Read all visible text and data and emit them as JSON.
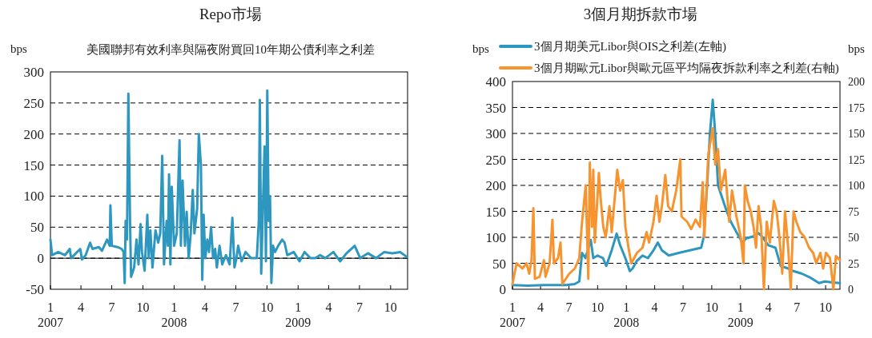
{
  "chart_data": [
    {
      "type": "line",
      "title": "Repo市場",
      "subtitle": "美國聯邦有效利率與隔夜附買回10年期公債利率之利差",
      "ylabel": "bps",
      "xlim": [
        "2007-01-01",
        "2009-11-20"
      ],
      "ylim": [
        -50,
        300
      ],
      "yticks": [
        -50,
        0,
        50,
        100,
        150,
        200,
        250,
        300
      ],
      "xticks": [
        {
          "value": "2007-01-01",
          "label": "1\n2007"
        },
        {
          "value": "2007-04-01",
          "label": "4"
        },
        {
          "value": "2007-07-01",
          "label": "7"
        },
        {
          "value": "2007-10-01",
          "label": "10"
        },
        {
          "value": "2008-01-01",
          "label": "1\n2008"
        },
        {
          "value": "2008-04-01",
          "label": "4"
        },
        {
          "value": "2008-07-01",
          "label": "7"
        },
        {
          "value": "2008-10-01",
          "label": "10"
        },
        {
          "value": "2009-01-01",
          "label": "1\n2009"
        },
        {
          "value": "2009-04-01",
          "label": "4"
        },
        {
          "value": "2009-07-01",
          "label": "7"
        },
        {
          "value": "2009-10-01",
          "label": "10"
        }
      ],
      "grid": "y",
      "legend": false,
      "ref_lines": [
        {
          "axis": "y",
          "value": 0,
          "color": "#000000",
          "line_style": "solid"
        }
      ],
      "series": [
        {
          "color": "#2e97c0",
          "x": [
            "2007-01-01",
            "2007-01-06",
            "2007-01-24",
            "2007-02-13",
            "2007-02-27",
            "2007-03-03",
            "2007-03-30",
            "2007-04-04",
            "2007-04-15",
            "2007-04-28",
            "2007-05-05",
            "2007-05-24",
            "2007-06-02",
            "2007-06-17",
            "2007-06-25",
            "2007-06-27",
            "2007-07-01",
            "2007-07-18",
            "2007-07-30",
            "2007-08-05",
            "2007-08-08",
            "2007-08-11",
            "2007-08-15",
            "2007-08-19",
            "2007-08-24",
            "2007-08-27",
            "2007-09-05",
            "2007-09-12",
            "2007-09-18",
            "2007-09-24",
            "2007-09-28",
            "2007-10-06",
            "2007-10-14",
            "2007-10-18",
            "2007-10-23",
            "2007-10-29",
            "2007-11-07",
            "2007-11-15",
            "2007-11-21",
            "2007-11-27",
            "2007-12-02",
            "2007-12-10",
            "2007-12-14",
            "2007-12-17",
            "2007-12-21",
            "2007-12-25",
            "2008-01-01",
            "2008-01-09",
            "2008-01-17",
            "2008-01-21",
            "2008-01-26",
            "2008-02-02",
            "2008-02-07",
            "2008-02-13",
            "2008-02-19",
            "2008-02-25",
            "2008-03-01",
            "2008-03-09",
            "2008-03-14",
            "2008-03-20",
            "2008-03-24",
            "2008-03-28",
            "2008-04-02",
            "2008-04-08",
            "2008-04-13",
            "2008-04-19",
            "2008-04-25",
            "2008-05-01",
            "2008-05-06",
            "2008-05-14",
            "2008-05-22",
            "2008-06-02",
            "2008-06-13",
            "2008-06-21",
            "2008-06-27",
            "2008-07-03",
            "2008-07-08",
            "2008-07-18",
            "2008-07-30",
            "2008-08-15",
            "2008-09-01",
            "2008-09-07",
            "2008-09-10",
            "2008-09-14",
            "2008-09-20",
            "2008-09-24",
            "2008-09-28",
            "2008-10-02",
            "2008-10-06",
            "2008-10-10",
            "2008-10-14",
            "2008-10-19",
            "2008-10-25",
            "2008-11-03",
            "2008-11-15",
            "2008-11-22",
            "2008-11-30",
            "2008-12-19",
            "2009-01-05",
            "2009-01-20",
            "2009-02-06",
            "2009-02-21",
            "2009-03-07",
            "2009-03-22",
            "2009-04-15",
            "2009-05-05",
            "2009-05-24",
            "2009-06-17",
            "2009-07-03",
            "2009-07-26",
            "2009-08-19",
            "2009-09-12",
            "2009-10-06",
            "2009-10-29",
            "2009-11-18"
          ],
          "values": [
            30,
            5,
            10,
            5,
            15,
            0,
            15,
            -2,
            5,
            25,
            15,
            18,
            12,
            30,
            20,
            85,
            20,
            18,
            15,
            10,
            -40,
            60,
            30,
            265,
            60,
            -30,
            -15,
            30,
            -10,
            55,
            10,
            -20,
            70,
            0,
            45,
            -15,
            45,
            25,
            40,
            165,
            -10,
            60,
            20,
            135,
            -10,
            115,
            20,
            40,
            190,
            20,
            125,
            20,
            75,
            0,
            40,
            110,
            40,
            80,
            200,
            150,
            -35,
            70,
            0,
            30,
            10,
            50,
            0,
            15,
            -15,
            20,
            -10,
            5,
            -10,
            65,
            -15,
            0,
            20,
            -5,
            10,
            0,
            0,
            60,
            255,
            -25,
            100,
            180,
            -5,
            270,
            60,
            100,
            -40,
            20,
            10,
            20,
            30,
            25,
            5,
            10,
            -5,
            10,
            0,
            0,
            5,
            0,
            10,
            -5,
            8,
            20,
            0,
            8,
            0,
            10,
            8,
            10,
            2
          ]
        }
      ]
    },
    {
      "type": "line",
      "title": "3個月期拆款市場",
      "ylabel": "bps",
      "y2label": "bps",
      "xlim": [
        "2007-01-01",
        "2009-11-16"
      ],
      "ylim": [
        0,
        400
      ],
      "yticks": [
        0,
        50,
        100,
        150,
        200,
        250,
        300,
        350,
        400
      ],
      "y2lim": [
        0,
        200
      ],
      "y2ticks": [
        0,
        25,
        50,
        75,
        100,
        125,
        150,
        175,
        200
      ],
      "xticks": [
        {
          "value": "2007-01-01",
          "label": "1\n2007"
        },
        {
          "value": "2007-04-01",
          "label": "4"
        },
        {
          "value": "2007-07-01",
          "label": "7"
        },
        {
          "value": "2007-10-01",
          "label": "10"
        },
        {
          "value": "2008-01-01",
          "label": "1\n2008"
        },
        {
          "value": "2008-04-01",
          "label": "4"
        },
        {
          "value": "2008-07-01",
          "label": "7"
        },
        {
          "value": "2008-10-01",
          "label": "10"
        },
        {
          "value": "2009-01-01",
          "label": "1\n2009"
        },
        {
          "value": "2009-04-01",
          "label": "4"
        },
        {
          "value": "2009-07-01",
          "label": "7"
        },
        {
          "value": "2009-10-01",
          "label": "10"
        }
      ],
      "grid": "y",
      "legend": "top",
      "series": [
        {
          "name": "3個月期美元Libor與OIS之利差(左軸)",
          "color": "#2e97c0",
          "x": [
            "2007-01-01",
            "2007-02-19",
            "2007-04-12",
            "2007-06-23",
            "2007-07-19",
            "2007-08-03",
            "2007-08-12",
            "2007-08-23",
            "2007-09-09",
            "2007-09-17",
            "2007-10-01",
            "2007-10-18",
            "2007-10-29",
            "2007-11-15",
            "2007-12-01",
            "2007-12-12",
            "2007-12-29",
            "2008-01-12",
            "2008-01-21",
            "2008-02-04",
            "2008-02-22",
            "2008-03-10",
            "2008-03-28",
            "2008-04-11",
            "2008-04-24",
            "2008-05-16",
            "2008-06-17",
            "2008-07-23",
            "2008-08-28",
            "2008-09-05",
            "2008-09-16",
            "2008-09-25",
            "2008-10-04",
            "2008-10-12",
            "2008-10-21",
            "2008-11-04",
            "2008-11-18",
            "2008-12-01",
            "2008-12-19",
            "2009-01-07",
            "2009-01-20",
            "2009-02-12",
            "2009-02-28",
            "2009-03-13",
            "2009-03-31",
            "2009-04-23",
            "2009-05-10",
            "2009-06-03",
            "2009-06-20",
            "2009-07-17",
            "2009-08-14",
            "2009-09-10",
            "2009-09-28",
            "2009-10-24",
            "2009-11-16"
          ],
          "values": [
            8,
            7,
            8,
            8,
            10,
            15,
            70,
            60,
            95,
            60,
            65,
            60,
            45,
            75,
            107,
            85,
            60,
            35,
            40,
            55,
            65,
            60,
            75,
            90,
            75,
            65,
            70,
            75,
            80,
            100,
            200,
            300,
            365,
            300,
            200,
            175,
            150,
            130,
            110,
            90,
            98,
            102,
            108,
            100,
            85,
            80,
            45,
            40,
            35,
            30,
            22,
            12,
            15,
            13,
            12
          ]
        },
        {
          "name": "3個月期歐元Libor與歐元區平均隔夜拆款利率之利差(右軸)",
          "color": "#f7942f",
          "axis": "y2",
          "x": [
            "2007-01-01",
            "2007-01-14",
            "2007-02-02",
            "2007-02-15",
            "2007-02-24",
            "2007-03-03",
            "2007-03-09",
            "2007-03-14",
            "2007-03-29",
            "2007-04-12",
            "2007-04-17",
            "2007-04-30",
            "2007-05-09",
            "2007-05-14",
            "2007-05-27",
            "2007-06-04",
            "2007-06-10",
            "2007-07-02",
            "2007-07-20",
            "2007-08-03",
            "2007-08-12",
            "2007-08-24",
            "2007-09-01",
            "2007-09-06",
            "2007-09-13",
            "2007-09-17",
            "2007-09-22",
            "2007-10-05",
            "2007-10-10",
            "2007-10-19",
            "2007-10-27",
            "2007-11-08",
            "2007-11-15",
            "2007-12-03",
            "2007-12-12",
            "2007-12-21",
            "2007-12-29",
            "2008-01-08",
            "2008-01-17",
            "2008-02-04",
            "2008-02-22",
            "2008-03-06",
            "2008-03-14",
            "2008-03-28",
            "2008-04-07",
            "2008-04-16",
            "2008-04-24",
            "2008-05-05",
            "2008-05-14",
            "2008-05-26",
            "2008-06-09",
            "2008-06-22",
            "2008-06-26",
            "2008-07-14",
            "2008-07-27",
            "2008-08-10",
            "2008-08-24",
            "2008-09-02",
            "2008-09-07",
            "2008-09-20",
            "2008-10-04",
            "2008-10-12",
            "2008-10-21",
            "2008-10-30",
            "2008-11-13",
            "2008-11-26",
            "2008-12-05",
            "2008-12-19",
            "2009-01-02",
            "2009-01-11",
            "2009-01-15",
            "2009-01-24",
            "2009-02-03",
            "2009-02-12",
            "2009-02-20",
            "2009-02-28",
            "2009-03-08",
            "2009-03-17",
            "2009-03-26",
            "2009-04-05",
            "2009-04-18",
            "2009-04-27",
            "2009-05-06",
            "2009-05-15",
            "2009-05-24",
            "2009-06-03",
            "2009-06-11",
            "2009-06-20",
            "2009-06-29",
            "2009-07-12",
            "2009-07-26",
            "2009-08-09",
            "2009-08-22",
            "2009-09-01",
            "2009-09-14",
            "2009-09-23",
            "2009-10-02",
            "2009-10-15",
            "2009-10-26",
            "2009-11-03",
            "2009-11-16"
          ],
          "values": [
            5,
            25,
            20,
            25,
            15,
            28,
            78,
            10,
            12,
            28,
            12,
            25,
            67,
            25,
            30,
            45,
            5,
            15,
            20,
            30,
            65,
            100,
            10,
            122,
            60,
            115,
            45,
            112,
            90,
            60,
            50,
            80,
            55,
            115,
            95,
            105,
            60,
            40,
            25,
            35,
            40,
            55,
            45,
            65,
            90,
            65,
            80,
            110,
            80,
            75,
            95,
            125,
            70,
            65,
            58,
            67,
            60,
            103,
            50,
            130,
            155,
            120,
            135,
            95,
            115,
            65,
            95,
            70,
            50,
            25,
            100,
            85,
            75,
            60,
            40,
            80,
            60,
            0,
            65,
            45,
            85,
            75,
            50,
            15,
            75,
            40,
            0,
            75,
            65,
            55,
            50,
            40,
            35,
            25,
            35,
            20,
            35,
            30,
            0,
            32,
            28
          ]
        }
      ]
    }
  ]
}
